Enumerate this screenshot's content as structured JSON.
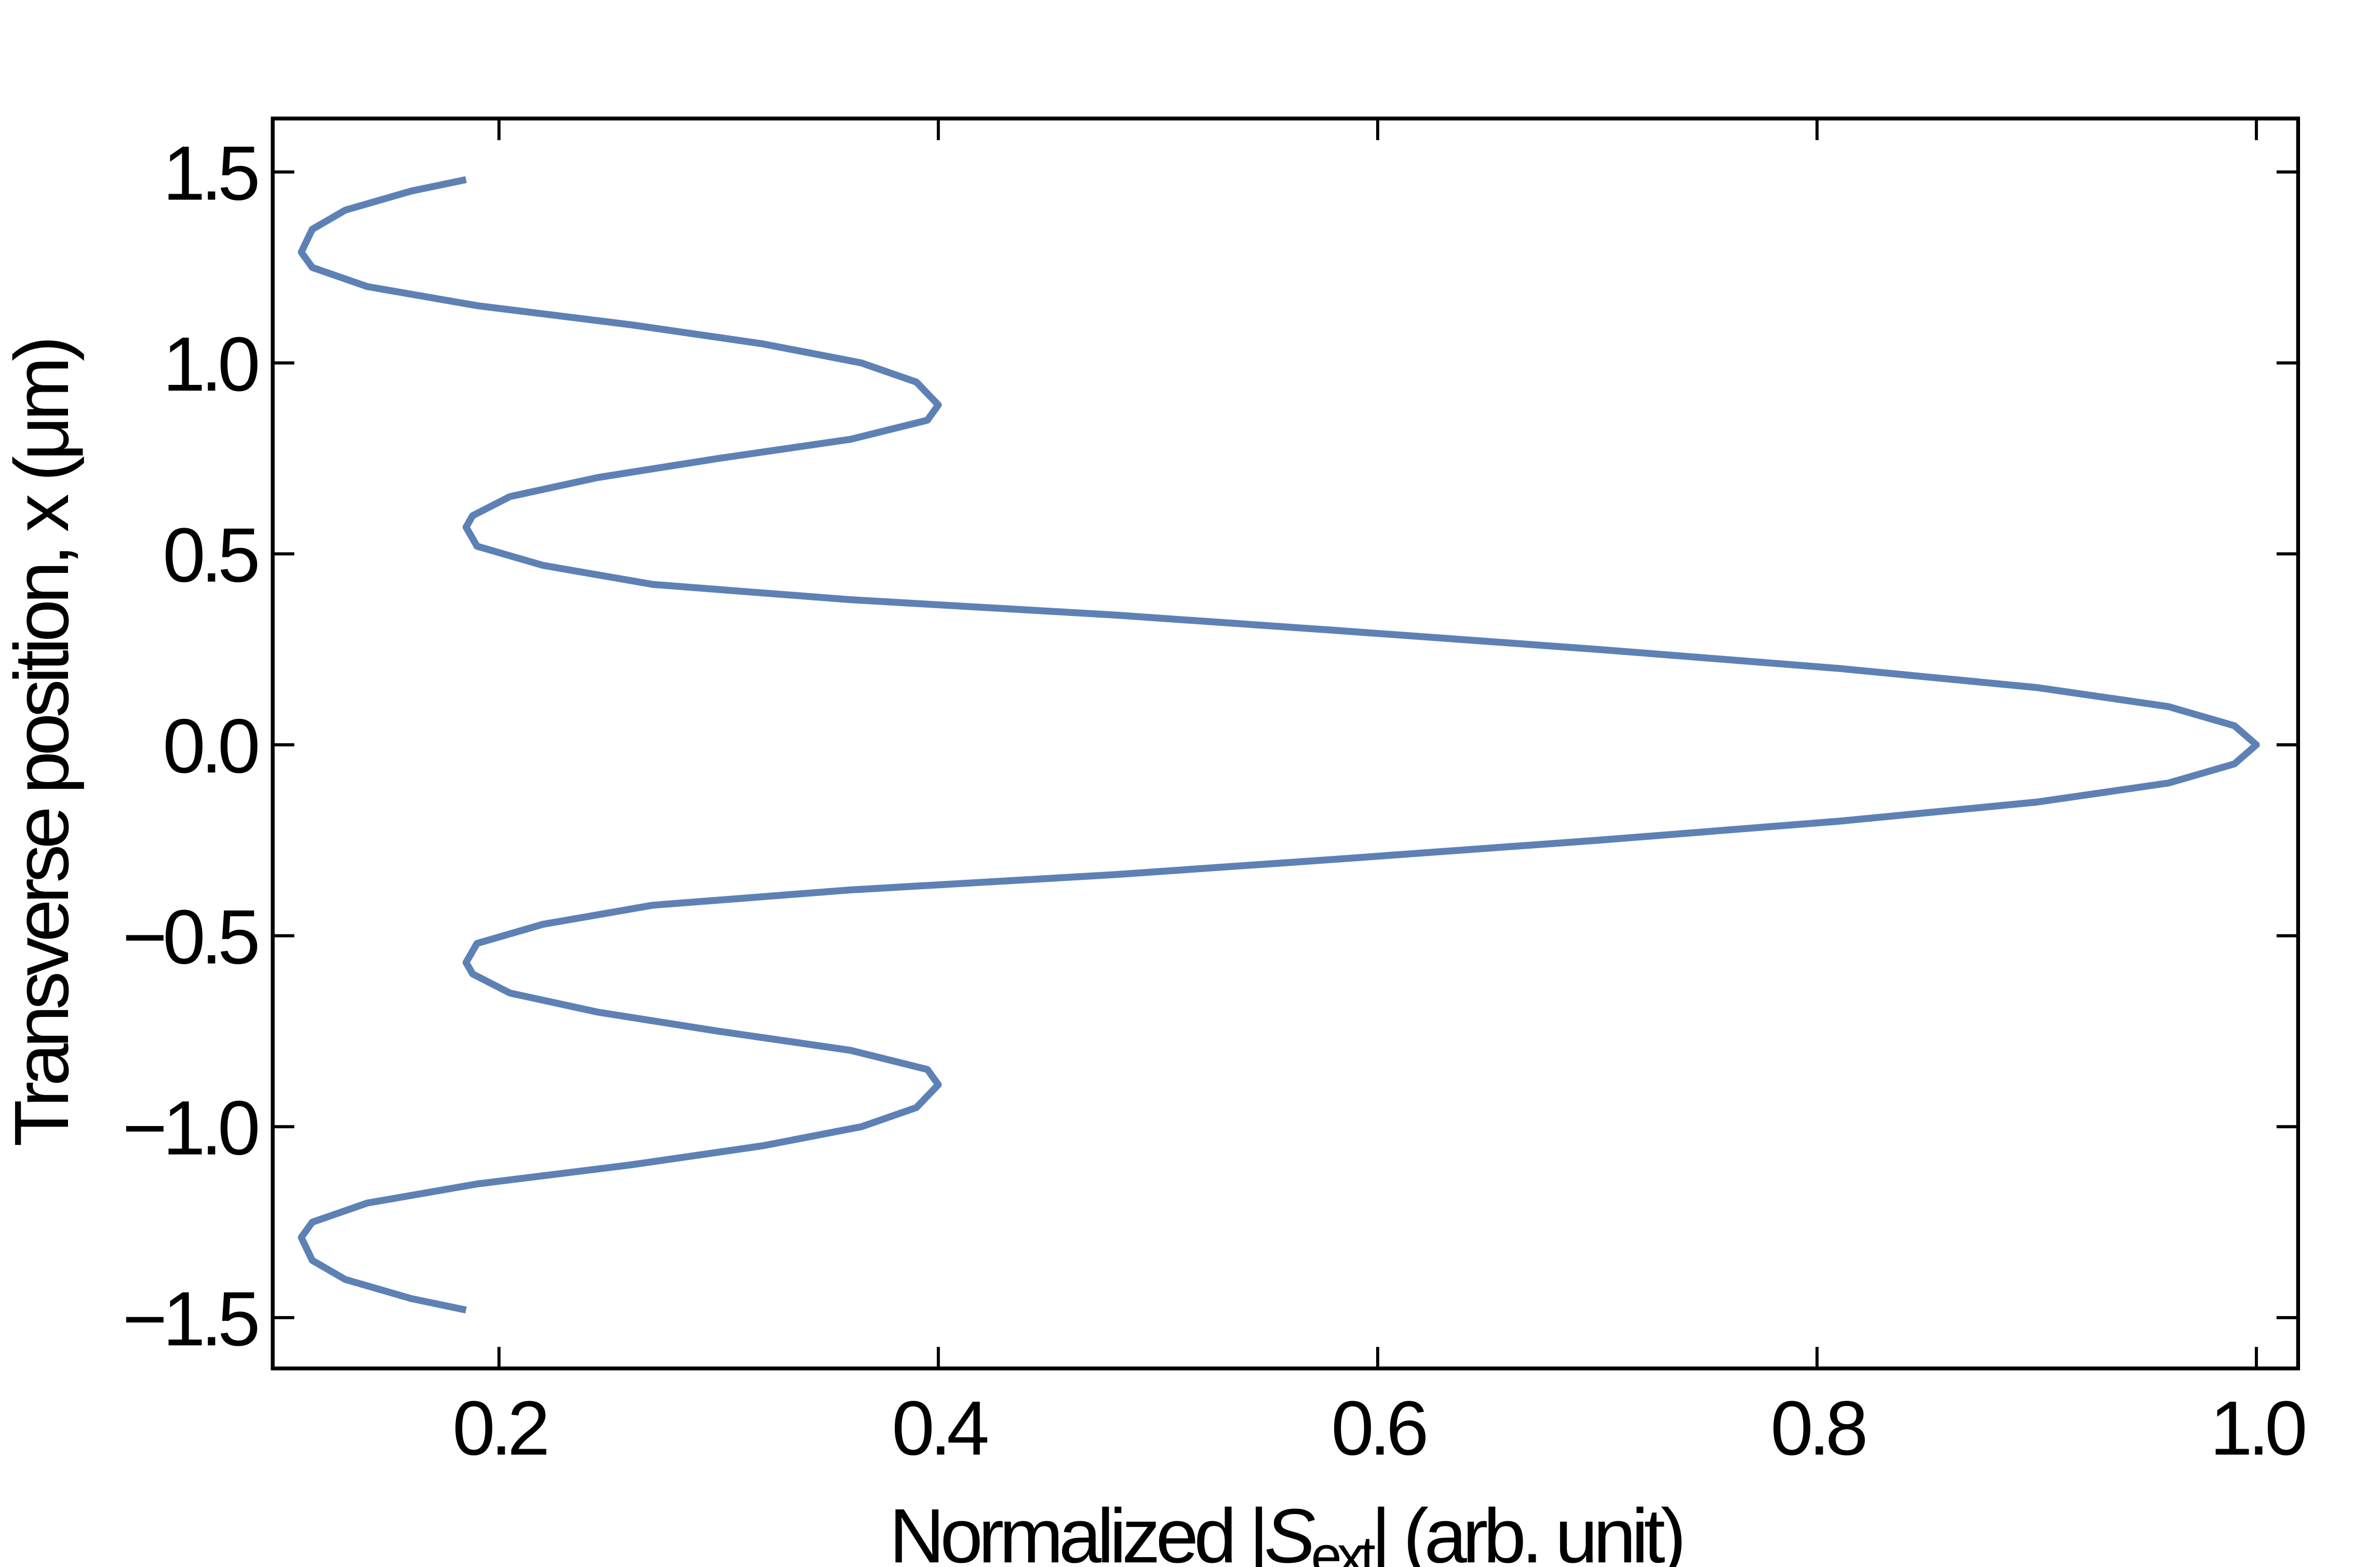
{
  "chart_data": {
    "type": "line",
    "xlabel": {
      "pre": "Normalized |",
      "symbol": "S",
      "sub": "ext",
      "post": "| (arb. unit)"
    },
    "ylabel": "Transverse position, x (μm)",
    "xlim": [
      0.097,
      1.019
    ],
    "ylim": [
      -1.633,
      1.64
    ],
    "xticks": [
      0.2,
      0.4,
      0.6,
      0.8,
      {
        "value": 1.0,
        "label": "1.0"
      }
    ],
    "yticks": [
      {
        "value": -1.5,
        "label": "−1.5"
      },
      {
        "value": -1.0,
        "label": "−1.0"
      },
      {
        "value": -0.5,
        "label": "−0.5"
      },
      {
        "value": 0.0,
        "label": "0.0"
      },
      0.5,
      {
        "value": 1.0,
        "label": "1.0"
      },
      1.5
    ],
    "x": [
      0.185,
      0.16,
      0.13,
      0.115,
      0.11,
      0.115,
      0.14,
      0.19,
      0.26,
      0.32,
      0.365,
      0.39,
      0.4,
      0.395,
      0.36,
      0.3,
      0.245,
      0.205,
      0.188,
      0.185,
      0.19,
      0.22,
      0.27,
      0.36,
      0.48,
      0.58,
      0.7,
      0.81,
      0.9,
      0.96,
      0.99,
      1.0,
      0.99,
      0.96,
      0.9,
      0.81,
      0.7,
      0.58,
      0.48,
      0.36,
      0.27,
      0.22,
      0.19,
      0.185,
      0.188,
      0.205,
      0.245,
      0.3,
      0.36,
      0.395,
      0.4,
      0.39,
      0.365,
      0.32,
      0.26,
      0.19,
      0.14,
      0.115,
      0.11,
      0.115,
      0.13,
      0.16,
      0.185
    ],
    "series": [
      {
        "color": "#5e81b5",
        "values": [
          -1.48,
          -1.45,
          -1.4,
          -1.35,
          -1.29,
          -1.25,
          -1.2,
          -1.15,
          -1.1,
          -1.05,
          -1.0,
          -0.95,
          -0.89,
          -0.85,
          -0.8,
          -0.75,
          -0.7,
          -0.65,
          -0.6,
          -0.57,
          -0.52,
          -0.47,
          -0.42,
          -0.38,
          -0.34,
          -0.3,
          -0.25,
          -0.2,
          -0.15,
          -0.1,
          -0.05,
          0.0,
          0.05,
          0.1,
          0.15,
          0.2,
          0.25,
          0.3,
          0.34,
          0.38,
          0.42,
          0.47,
          0.52,
          0.57,
          0.6,
          0.65,
          0.7,
          0.75,
          0.8,
          0.85,
          0.89,
          0.95,
          1.0,
          1.05,
          1.1,
          1.15,
          1.2,
          1.25,
          1.29,
          1.35,
          1.4,
          1.45,
          1.48
        ]
      }
    ]
  }
}
